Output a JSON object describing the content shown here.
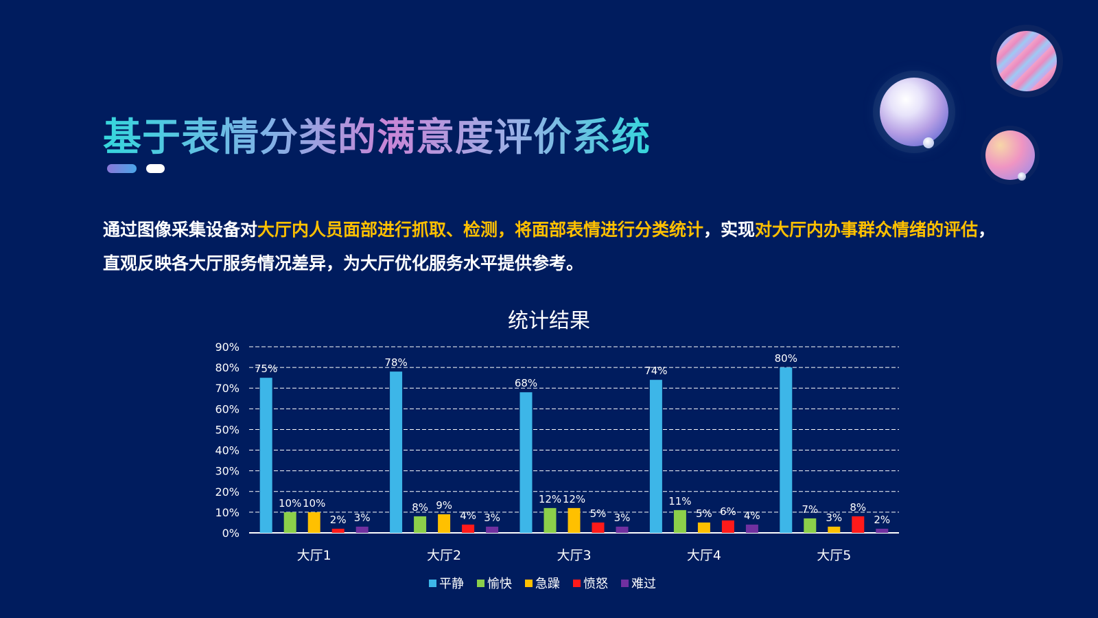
{
  "title": "基于表情分类的满意度评价系统",
  "intro": {
    "line1": [
      {
        "text": "通过图像采集设备对",
        "hl": false
      },
      {
        "text": "大厅内人员面部进行抓取、检测，将面部表情进行分类统计",
        "hl": true
      },
      {
        "text": "，实现",
        "hl": false
      },
      {
        "text": "对大厅内办事群众情绪的评估",
        "hl": true
      },
      {
        "text": "，",
        "hl": false
      }
    ],
    "line2": "直观反映各大厅服务情况差异，为大厅优化服务水平提供参考。"
  },
  "colors": {
    "background": "#001c5e",
    "highlight": "#ffc000",
    "series": [
      "#3db6e8",
      "#8ccf4a",
      "#ffc000",
      "#ff1a1a",
      "#7030a0"
    ]
  },
  "chart_data": {
    "type": "bar",
    "title": "统计结果",
    "categories": [
      "大厅1",
      "大厅2",
      "大厅3",
      "大厅4",
      "大厅5"
    ],
    "series": [
      {
        "name": "平静",
        "values": [
          75,
          78,
          68,
          74,
          80
        ]
      },
      {
        "name": "愉快",
        "values": [
          10,
          8,
          12,
          11,
          7
        ]
      },
      {
        "name": "急躁",
        "values": [
          10,
          9,
          12,
          5,
          3
        ]
      },
      {
        "name": "愤怒",
        "values": [
          2,
          4,
          5,
          6,
          8
        ]
      },
      {
        "name": "难过",
        "values": [
          3,
          3,
          3,
          4,
          2
        ]
      }
    ],
    "value_suffix": "%",
    "ylim": [
      0,
      90
    ],
    "yticks": [
      "0%",
      "10%",
      "20%",
      "30%",
      "40%",
      "50%",
      "60%",
      "70%",
      "80%",
      "90%"
    ],
    "grid": true,
    "legend_position": "bottom",
    "xlabel": "",
    "ylabel": ""
  }
}
